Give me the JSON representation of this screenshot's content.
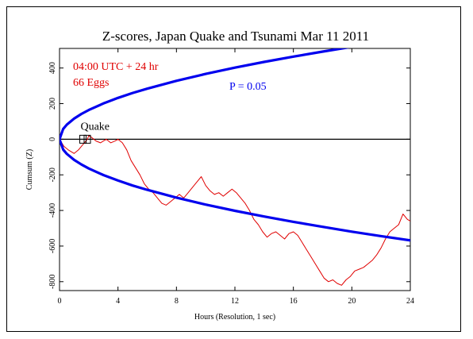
{
  "chart_data": {
    "type": "line",
    "title": "Z-scores, Japan Quake and Tsunami Mar 11 2011",
    "subtitle_lines": [
      "04:00 UTC + 24 hr",
      "66 Eggs"
    ],
    "xlabel": "Hours (Resolution, 1 sec)",
    "ylabel": "Cumsum (Z)",
    "xlim": [
      0,
      24
    ],
    "ylim": [
      -850,
      510
    ],
    "x_ticks": [
      0,
      4,
      8,
      12,
      16,
      20,
      24
    ],
    "y_ticks": [
      -800,
      -600,
      -400,
      -200,
      0,
      200,
      400
    ],
    "x_tick_labels": [
      "0",
      "4",
      "8",
      "12",
      "16",
      "20",
      "24"
    ],
    "y_tick_labels": [
      "-800",
      "-600",
      "-400",
      "-200",
      "0",
      "200",
      "400"
    ],
    "grid": false,
    "annotations": {
      "significance_label": "P = 0.05",
      "event_label": "Quake",
      "event_x_hours": [
        1.6,
        1.9
      ]
    },
    "series": [
      {
        "role": "cumulative deviation",
        "color": "#e00000",
        "x": [
          0,
          0.3,
          0.6,
          1.0,
          1.3,
          1.5,
          1.7,
          1.9,
          2.0,
          2.2,
          2.5,
          2.8,
          3.0,
          3.2,
          3.5,
          3.8,
          4.0,
          4.3,
          4.6,
          4.9,
          5.2,
          5.5,
          5.8,
          6.1,
          6.4,
          6.7,
          7.0,
          7.3,
          7.6,
          7.9,
          8.2,
          8.5,
          8.8,
          9.1,
          9.4,
          9.7,
          10.0,
          10.3,
          10.6,
          10.9,
          11.2,
          11.5,
          11.8,
          12.1,
          12.4,
          12.7,
          13.0,
          13.3,
          13.6,
          13.9,
          14.2,
          14.5,
          14.8,
          15.1,
          15.4,
          15.7,
          16.0,
          16.3,
          16.6,
          16.9,
          17.2,
          17.5,
          17.8,
          18.1,
          18.4,
          18.7,
          19.0,
          19.3,
          19.6,
          19.9,
          20.2,
          20.5,
          20.8,
          21.1,
          21.4,
          21.7,
          22.0,
          22.3,
          22.6,
          22.9,
          23.2,
          23.5,
          23.8,
          24.0
        ],
        "y": [
          0,
          -40,
          -60,
          -80,
          -60,
          -40,
          -20,
          0,
          20,
          10,
          -10,
          -20,
          -10,
          0,
          -20,
          -10,
          0,
          -20,
          -60,
          -120,
          -160,
          -200,
          -250,
          -280,
          -300,
          -330,
          -360,
          -370,
          -350,
          -330,
          -310,
          -330,
          -300,
          -270,
          -240,
          -210,
          -260,
          -290,
          -310,
          -300,
          -320,
          -300,
          -280,
          -300,
          -330,
          -360,
          -400,
          -450,
          -480,
          -520,
          -550,
          -530,
          -520,
          -540,
          -560,
          -530,
          -520,
          -540,
          -580,
          -620,
          -660,
          -700,
          -740,
          -780,
          -800,
          -790,
          -810,
          -820,
          -790,
          -770,
          -740,
          -730,
          -720,
          -700,
          -680,
          -650,
          -610,
          -560,
          -520,
          -500,
          -480,
          -420,
          -450,
          -460
        ]
      },
      {
        "role": "upper P = 0.05 envelope",
        "color": "#0000ee",
        "x": [
          0,
          0.25,
          0.5,
          1,
          1.5,
          2,
          3,
          4,
          5,
          6,
          8,
          10,
          12,
          14,
          16,
          18,
          20,
          22,
          24
        ],
        "y": [
          0,
          58,
          82,
          116,
          142,
          164,
          201,
          232,
          260,
          284,
          328,
          367,
          402,
          434,
          464,
          492,
          519,
          544,
          568
        ]
      },
      {
        "role": "lower P = 0.05 envelope",
        "color": "#0000ee",
        "x": [
          0,
          0.25,
          0.5,
          1,
          1.5,
          2,
          3,
          4,
          5,
          6,
          8,
          10,
          12,
          14,
          16,
          18,
          20,
          22,
          24
        ],
        "y": [
          0,
          -58,
          -82,
          -116,
          -142,
          -164,
          -201,
          -232,
          -260,
          -284,
          -328,
          -367,
          -402,
          -434,
          -464,
          -492,
          -519,
          -544,
          -568
        ]
      }
    ]
  }
}
